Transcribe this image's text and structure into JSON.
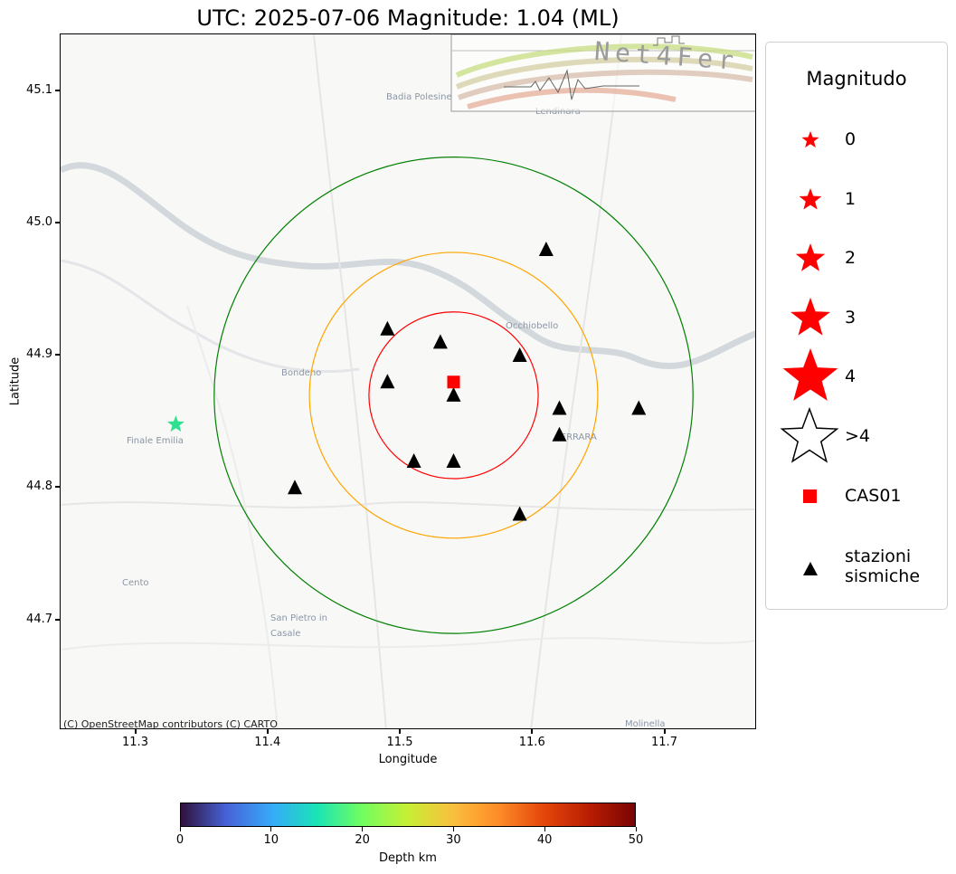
{
  "title": "UTC: 2025-07-06 Magnitude: 1.04 (ML)",
  "axes": {
    "xlabel": "Longitude",
    "ylabel": "Latitude",
    "xticks": [
      "11.3",
      "11.4",
      "11.5",
      "11.6",
      "11.7"
    ],
    "yticks": [
      "45.1",
      "45.0",
      "44.9",
      "44.8",
      "44.7"
    ]
  },
  "map": {
    "attribution": "(C) OpenStreetMap contributors (C) CARTO",
    "places": [
      "Badia Polesine",
      "Lendinara",
      "Occhiobello",
      "Bondeno",
      "Finale Emilia",
      "FERRARA",
      "Cento",
      "San Pietro in",
      "Casale",
      "Molinella"
    ],
    "logo_text": "Net4Fer",
    "epicenter": {
      "lon": 11.33,
      "lat": 44.848,
      "depth_km": 22,
      "magnitude": 1.04,
      "color": "#2ee08f"
    },
    "station_CAS01": {
      "name": "CAS01",
      "lon": 11.54,
      "lat": 44.88,
      "color": "#ff0000"
    },
    "stations": [
      {
        "lon": 11.61,
        "lat": 44.98
      },
      {
        "lon": 11.49,
        "lat": 44.92
      },
      {
        "lon": 11.53,
        "lat": 44.91
      },
      {
        "lon": 11.59,
        "lat": 44.9
      },
      {
        "lon": 11.49,
        "lat": 44.88
      },
      {
        "lon": 11.54,
        "lat": 44.87
      },
      {
        "lon": 11.62,
        "lat": 44.86
      },
      {
        "lon": 11.68,
        "lat": 44.86
      },
      {
        "lon": 11.62,
        "lat": 44.84
      },
      {
        "lon": 11.51,
        "lat": 44.82
      },
      {
        "lon": 11.54,
        "lat": 44.82
      },
      {
        "lon": 11.42,
        "lat": 44.8
      },
      {
        "lon": 11.59,
        "lat": 44.78
      }
    ],
    "circles": [
      {
        "color": "#ff0000",
        "lon_radius": 0.064,
        "lat_radius": 0.063
      },
      {
        "color": "#ffa500",
        "lon_radius": 0.109,
        "lat_radius": 0.108
      },
      {
        "color": "#008000",
        "lon_radius": 0.181,
        "lat_radius": 0.18
      }
    ],
    "circle_center": {
      "lon": 11.54,
      "lat": 44.87
    }
  },
  "legend": {
    "title": "Magnitudo",
    "magnitudes": [
      "0",
      "1",
      "2",
      "3",
      "4",
      ">4"
    ],
    "cas01_label": "CAS01",
    "stations_label_1": "stazioni",
    "stations_label_2": "sismiche",
    "star_color": "#ff0000"
  },
  "colorbar": {
    "label": "Depth km",
    "ticks": [
      "0",
      "10",
      "20",
      "30",
      "40",
      "50"
    ]
  }
}
